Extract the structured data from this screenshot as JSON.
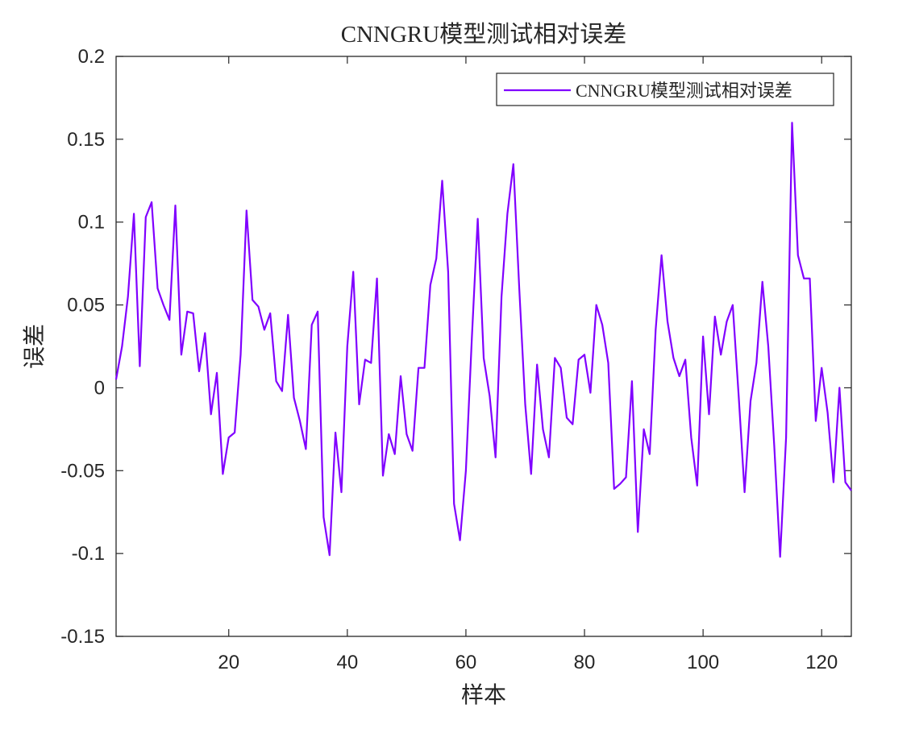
{
  "chart_data": {
    "type": "line",
    "title": "CNNGRU模型测试相对误差",
    "xlabel": "样本",
    "ylabel": "误差",
    "xlim": [
      1,
      125
    ],
    "ylim": [
      -0.15,
      0.2
    ],
    "xticks": [
      20,
      40,
      60,
      80,
      100,
      120
    ],
    "xtick_labels": [
      "20",
      "40",
      "60",
      "80",
      "100",
      "120"
    ],
    "yticks": [
      -0.15,
      -0.1,
      -0.05,
      0,
      0.05,
      0.1,
      0.15,
      0.2
    ],
    "ytick_labels": [
      "-0.15",
      "-0.1",
      "-0.05",
      "0",
      "0.05",
      "0.1",
      "0.15",
      "0.2"
    ],
    "grid": false,
    "legend_position": "top-right",
    "series": [
      {
        "name": "CNNGRU模型测试相对误差",
        "color": "#8000ff",
        "values": [
          0.005,
          0.025,
          0.055,
          0.105,
          0.013,
          0.103,
          0.112,
          0.06,
          0.05,
          0.041,
          0.11,
          0.02,
          0.046,
          0.045,
          0.01,
          0.033,
          -0.016,
          0.009,
          -0.052,
          -0.03,
          -0.027,
          0.02,
          0.107,
          0.053,
          0.049,
          0.035,
          0.045,
          0.004,
          -0.002,
          0.044,
          -0.006,
          -0.02,
          -0.037,
          0.038,
          0.046,
          -0.078,
          -0.101,
          -0.027,
          -0.063,
          0.025,
          0.07,
          -0.01,
          0.017,
          0.015,
          0.066,
          -0.053,
          -0.028,
          -0.04,
          0.007,
          -0.028,
          -0.038,
          0.012,
          0.012,
          0.062,
          0.078,
          0.125,
          0.07,
          -0.07,
          -0.092,
          -0.05,
          0.03,
          0.102,
          0.018,
          -0.005,
          -0.042,
          0.055,
          0.105,
          0.135,
          0.06,
          -0.01,
          -0.052,
          0.014,
          -0.025,
          -0.042,
          0.018,
          0.012,
          -0.018,
          -0.022,
          0.017,
          0.02,
          -0.003,
          0.05,
          0.038,
          0.015,
          -0.061,
          -0.058,
          -0.054,
          0.004,
          -0.087,
          -0.025,
          -0.04,
          0.035,
          0.08,
          0.04,
          0.018,
          0.007,
          0.017,
          -0.03,
          -0.059,
          0.031,
          -0.016,
          0.043,
          0.02,
          0.04,
          0.05,
          -0.005,
          -0.063,
          -0.008,
          0.015,
          0.064,
          0.025,
          -0.035,
          -0.102,
          -0.03,
          0.16,
          0.08,
          0.066,
          0.066,
          -0.02,
          0.012,
          -0.015,
          -0.057,
          0.0,
          -0.057,
          -0.062
        ]
      }
    ]
  }
}
